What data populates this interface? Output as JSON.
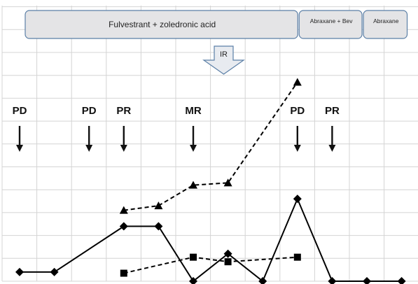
{
  "treatments": [
    {
      "label": "Fulvestrant + zoledronic acid",
      "start": 0,
      "end": 8.05
    },
    {
      "label": "Abraxane + Bev",
      "start": 8.05,
      "end": 9.9
    },
    {
      "label": "Abraxane",
      "start": 9.9,
      "end": 11.2
    }
  ],
  "ir_label": "IR",
  "responses": [
    {
      "label": "PD",
      "x": 0
    },
    {
      "label": "PD",
      "x": 2
    },
    {
      "label": "PR",
      "x": 3
    },
    {
      "label": "MR",
      "x": 5
    },
    {
      "label": "PD",
      "x": 8
    },
    {
      "label": "PR",
      "x": 9
    }
  ],
  "chart_data": {
    "type": "line",
    "x": [
      0,
      1,
      2,
      3,
      4,
      5,
      6,
      7,
      8,
      9,
      10,
      11
    ],
    "ylim": [
      0,
      10
    ],
    "grid": true,
    "series": [
      {
        "marker": "diamond",
        "style": "solid",
        "color": "#000000",
        "values": [
          0.4,
          0.4,
          null,
          2.4,
          2.4,
          0,
          1.2,
          0,
          3.6,
          0,
          0,
          0
        ]
      },
      {
        "marker": "triangle",
        "style": "dashed",
        "color": "#000000",
        "values": [
          null,
          null,
          null,
          3.1,
          3.3,
          4.2,
          4.3,
          null,
          8.7,
          null,
          null,
          null
        ]
      },
      {
        "marker": "square",
        "style": "dashed",
        "color": "#000000",
        "values": [
          null,
          null,
          null,
          0.35,
          null,
          1.05,
          0.85,
          null,
          1.05,
          null,
          null,
          null
        ]
      }
    ]
  }
}
